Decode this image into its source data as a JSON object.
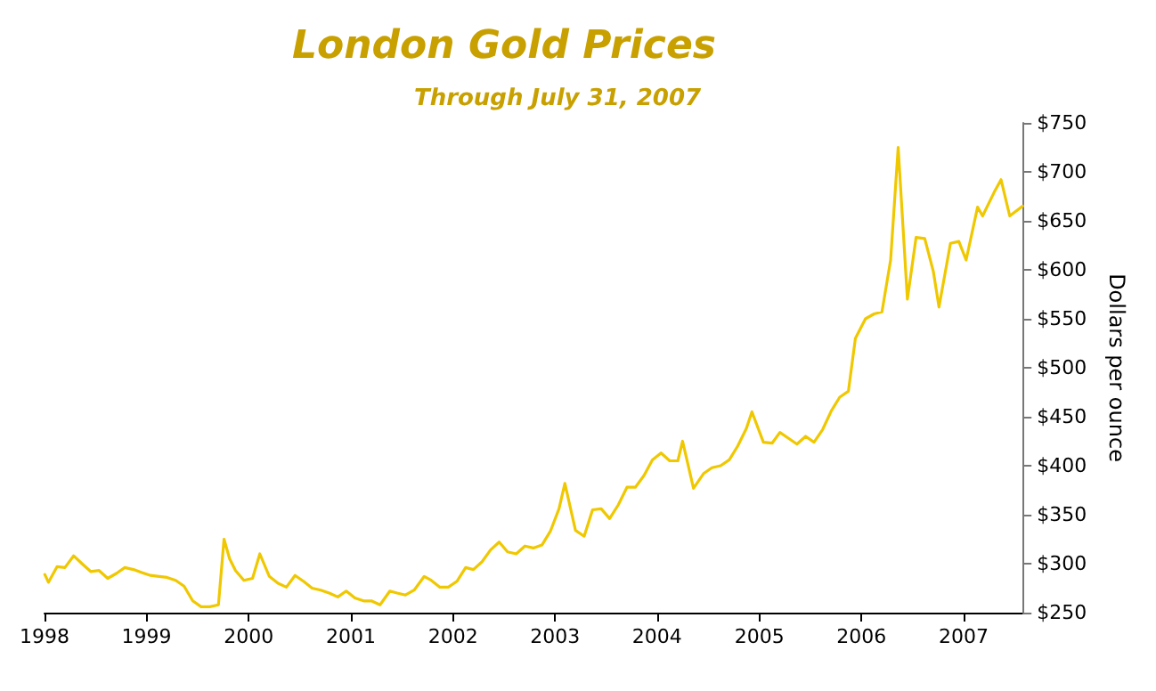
{
  "chart_data": {
    "type": "line",
    "title": "London Gold Prices",
    "subtitle": "Through July 31, 2007",
    "ylabel": "Dollars per ounce",
    "x": [
      "1998-01-02",
      "1998-01-15",
      "1998-02-15",
      "1998-03-15",
      "1998-04-15",
      "1998-05-15",
      "1998-06-15",
      "1998-07-15",
      "1998-08-15",
      "1998-09-15",
      "1998-10-15",
      "1998-11-15",
      "1998-12-15",
      "1999-01-15",
      "1999-02-15",
      "1999-03-15",
      "1999-04-15",
      "1999-05-15",
      "1999-06-15",
      "1999-07-15",
      "1999-08-15",
      "1999-09-15",
      "1999-10-05",
      "1999-10-25",
      "1999-11-15",
      "1999-12-15",
      "2000-01-15",
      "2000-02-10",
      "2000-03-15",
      "2000-04-15",
      "2000-05-15",
      "2000-06-15",
      "2000-07-15",
      "2000-08-15",
      "2000-09-15",
      "2000-10-15",
      "2000-11-15",
      "2000-12-15",
      "2001-01-15",
      "2001-02-15",
      "2001-03-15",
      "2001-04-15",
      "2001-05-20",
      "2001-06-15",
      "2001-07-15",
      "2001-08-15",
      "2001-09-20",
      "2001-10-15",
      "2001-11-15",
      "2001-12-15",
      "2002-01-15",
      "2002-02-15",
      "2002-03-15",
      "2002-04-15",
      "2002-05-15",
      "2002-06-15",
      "2002-07-15",
      "2002-08-15",
      "2002-09-15",
      "2002-10-15",
      "2002-11-15",
      "2002-12-15",
      "2003-01-15",
      "2003-02-05",
      "2003-03-15",
      "2003-04-15",
      "2003-05-15",
      "2003-06-15",
      "2003-07-15",
      "2003-08-15",
      "2003-09-15",
      "2003-10-15",
      "2003-11-15",
      "2003-12-15",
      "2004-01-15",
      "2004-02-15",
      "2004-03-15",
      "2004-04-01",
      "2004-05-10",
      "2004-06-15",
      "2004-07-15",
      "2004-08-15",
      "2004-09-15",
      "2004-10-15",
      "2004-11-15",
      "2004-12-05",
      "2005-01-15",
      "2005-02-15",
      "2005-03-15",
      "2005-04-15",
      "2005-05-15",
      "2005-06-15",
      "2005-07-15",
      "2005-08-15",
      "2005-09-15",
      "2005-10-15",
      "2005-11-15",
      "2005-12-10",
      "2006-01-15",
      "2006-02-15",
      "2006-03-15",
      "2006-04-15",
      "2006-05-12",
      "2006-06-14",
      "2006-07-15",
      "2006-08-15",
      "2006-09-15",
      "2006-10-05",
      "2006-11-15",
      "2006-12-15",
      "2007-01-10",
      "2007-02-20",
      "2007-03-10",
      "2007-04-20",
      "2007-05-15",
      "2007-06-15",
      "2007-07-31"
    ],
    "series": [
      {
        "color": "#f0c800",
        "values": [
          289,
          281,
          297,
          296,
          308,
          300,
          292,
          293,
          285,
          290,
          296,
          294,
          291,
          288,
          287,
          286,
          283,
          277,
          262,
          256,
          256,
          258,
          325,
          305,
          293,
          283,
          285,
          310,
          287,
          280,
          276,
          288,
          282,
          275,
          273,
          270,
          266,
          272,
          265,
          262,
          262,
          258,
          272,
          270,
          268,
          273,
          287,
          283,
          276,
          276,
          282,
          296,
          294,
          302,
          314,
          322,
          312,
          310,
          318,
          316,
          319,
          333,
          356,
          382,
          334,
          328,
          355,
          356,
          346,
          360,
          378,
          378,
          390,
          406,
          413,
          405,
          405,
          425,
          377,
          392,
          398,
          400,
          406,
          420,
          438,
          455,
          424,
          423,
          434,
          428,
          422,
          430,
          424,
          437,
          456,
          470,
          476,
          530,
          550,
          555,
          557,
          610,
          725,
          570,
          633,
          632,
          598,
          562,
          627,
          629,
          610,
          664,
          655,
          679,
          692,
          655,
          665
        ]
      }
    ],
    "xlim": [
      "1998-01-01",
      "2007-07-31"
    ],
    "xticks": [
      {
        "value": "1998-01-01",
        "label": "1998"
      },
      {
        "value": "1999-01-01",
        "label": "1999"
      },
      {
        "value": "2000-01-01",
        "label": "2000"
      },
      {
        "value": "2001-01-01",
        "label": "2001"
      },
      {
        "value": "2002-01-01",
        "label": "2002"
      },
      {
        "value": "2003-01-01",
        "label": "2003"
      },
      {
        "value": "2004-01-01",
        "label": "2004"
      },
      {
        "value": "2005-01-01",
        "label": "2005"
      },
      {
        "value": "2006-01-01",
        "label": "2006"
      },
      {
        "value": "2007-01-01",
        "label": "2007"
      }
    ],
    "ylim": [
      250,
      750
    ],
    "yticks": [
      {
        "value": 250,
        "label": "$250"
      },
      {
        "value": 300,
        "label": "$300"
      },
      {
        "value": 350,
        "label": "$350"
      },
      {
        "value": 400,
        "label": "$400"
      },
      {
        "value": 450,
        "label": "$450"
      },
      {
        "value": 500,
        "label": "$500"
      },
      {
        "value": 550,
        "label": "$550"
      },
      {
        "value": 600,
        "label": "$600"
      },
      {
        "value": 650,
        "label": "$650"
      },
      {
        "value": 700,
        "label": "$700"
      },
      {
        "value": 750,
        "label": "$750"
      }
    ],
    "grid": false,
    "marker": "none",
    "line_style": "solid"
  }
}
